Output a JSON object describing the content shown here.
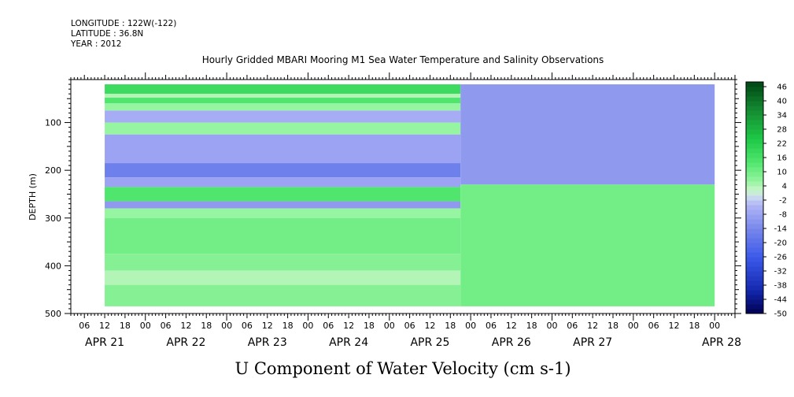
{
  "header": {
    "longitude": "LONGITUDE : 122W(-122)",
    "latitude": "LATITUDE : 36.8N",
    "year": "YEAR : 2012"
  },
  "chart_data": {
    "type": "heatmap",
    "title": "Hourly Gridded MBARI Mooring M1 Sea Water Temperature and Salinity Observations",
    "xlabel": "U Component of Water Velocity (cm s-1)",
    "ylabel": "DEPTH (m)",
    "xlim": [
      "2012-04-20T02:00",
      "2012-04-28T06:00"
    ],
    "ylim": [
      500,
      10
    ],
    "y_ticks": [
      100,
      200,
      300,
      400,
      500
    ],
    "y_tick_labels": [
      "100",
      "200",
      "300",
      "400",
      "500"
    ],
    "x_tick_labels": [
      "06",
      "12",
      "18",
      "00",
      "06",
      "12",
      "18",
      "00",
      "06",
      "12",
      "18",
      "00",
      "06",
      "12",
      "18",
      "00",
      "06",
      "12",
      "18",
      "00",
      "06",
      "12",
      "18",
      "00",
      "06",
      "12",
      "18",
      "00",
      "06",
      "12",
      "18",
      "00"
    ],
    "date_labels": [
      "APR 21",
      "APR 22",
      "APR 23",
      "APR 24",
      "APR 25",
      "APR 26",
      "APR 27",
      "APR 28"
    ],
    "colorbar": {
      "levels": [
        "46",
        "40",
        "34",
        "28",
        "22",
        "16",
        "10",
        "4",
        "-2",
        "-8",
        "-14",
        "-20",
        "-26",
        "-32",
        "-38",
        "-44",
        "-50"
      ],
      "range": [
        -50,
        48
      ],
      "step": 2
    },
    "data_start": "2012-04-20T12:00",
    "data_split": "2012-04-24T21:00",
    "data_end": "2012-04-28T00:00",
    "depth_range": [
      20,
      485
    ],
    "uniform_profile": [
      {
        "depth_from": 20,
        "depth_to": 40,
        "value": 18
      },
      {
        "depth_from": 40,
        "depth_to": 48,
        "value": 4
      },
      {
        "depth_from": 48,
        "depth_to": 60,
        "value": 14
      },
      {
        "depth_from": 60,
        "depth_to": 75,
        "value": 6
      },
      {
        "depth_from": 75,
        "depth_to": 100,
        "value": -6
      },
      {
        "depth_from": 100,
        "depth_to": 125,
        "value": 6
      },
      {
        "depth_from": 125,
        "depth_to": 185,
        "value": -8
      },
      {
        "depth_from": 185,
        "depth_to": 215,
        "value": -16
      },
      {
        "depth_from": 215,
        "depth_to": 235,
        "value": -8
      },
      {
        "depth_from": 235,
        "depth_to": 265,
        "value": 14
      },
      {
        "depth_from": 265,
        "depth_to": 280,
        "value": -10
      },
      {
        "depth_from": 280,
        "depth_to": 300,
        "value": 6
      },
      {
        "depth_from": 300,
        "depth_to": 375,
        "value": 10
      },
      {
        "depth_from": 375,
        "depth_to": 410,
        "value": 8
      },
      {
        "depth_from": 410,
        "depth_to": 440,
        "value": 4
      },
      {
        "depth_from": 440,
        "depth_to": 485,
        "value": 8
      }
    ],
    "variable_profile": [
      {
        "depth_from": 20,
        "depth_to": 230,
        "value": -10
      },
      {
        "depth_from": 230,
        "depth_to": 485,
        "value": 10
      }
    ]
  }
}
